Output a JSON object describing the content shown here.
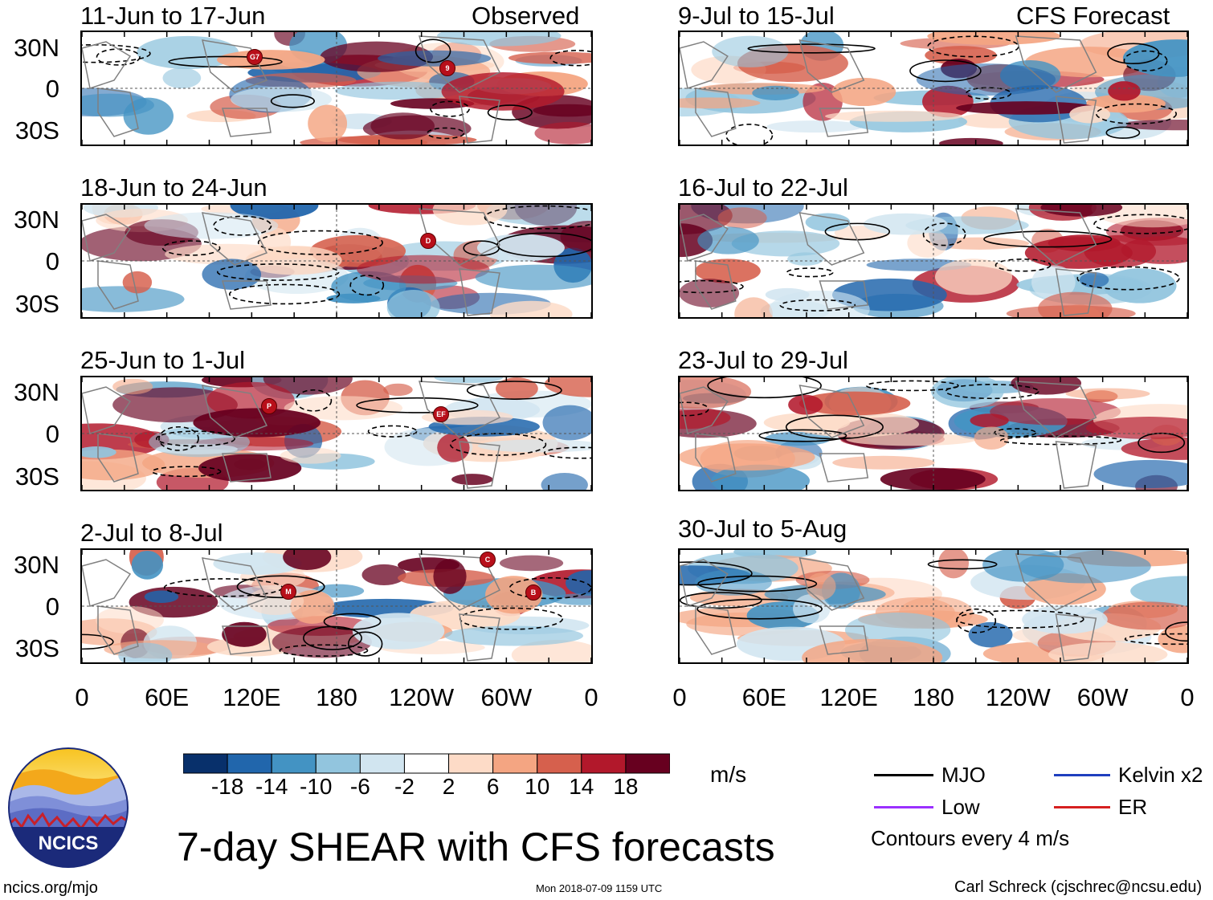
{
  "title": "7-day SHEAR with CFS forecasts",
  "logo": {
    "text": "NCICS",
    "url_text": "ncics.org/mjo",
    "icon": "ncics-mountain-logo"
  },
  "timestamp": "Mon 2018-07-09 1159 UTC",
  "author": "Carl Schreck (cjschrec@ncsu.edu)",
  "column_labels": {
    "observed": "Observed",
    "forecast": "CFS Forecast"
  },
  "y_ticks": [
    "30N",
    "0",
    "30S"
  ],
  "x_ticks": [
    "0",
    "60E",
    "120E",
    "180",
    "120W",
    "60W",
    "0"
  ],
  "colorbar": {
    "units": "m/s",
    "labels": [
      "-18",
      "-14",
      "-10",
      "-6",
      "-2",
      "2",
      "6",
      "10",
      "14",
      "18"
    ],
    "colors": [
      "#08306b",
      "#2166ac",
      "#4393c3",
      "#92c5de",
      "#d1e5f0",
      "#ffffff",
      "#fddbc7",
      "#f4a582",
      "#d6604d",
      "#b2182b",
      "#67001f"
    ]
  },
  "legend": {
    "items": [
      {
        "label": "MJO",
        "color": "#000000"
      },
      {
        "label": "Kelvin x2",
        "color": "#1f3fbf"
      },
      {
        "label": "Low",
        "color": "#9b30ff"
      },
      {
        "label": "ER",
        "color": "#d62020"
      }
    ],
    "note": "Contours every 4 m/s"
  },
  "chart_data": {
    "type": "heatmap",
    "variable": "vertical wind shear anomaly",
    "units": "m/s",
    "contour_interval_m_s": 4,
    "lat_range": [
      -40,
      40
    ],
    "lon_range": [
      0,
      360
    ],
    "panels": [
      {
        "label": "11-Jun to 17-Jun",
        "source": "Observed",
        "storms": [
          "G",
          "7",
          "9"
        ]
      },
      {
        "label": "18-Jun to 24-Jun",
        "source": "Observed",
        "storms": [
          "D"
        ]
      },
      {
        "label": "25-Jun to 1-Jul",
        "source": "Observed",
        "storms": [
          "P",
          "E",
          "F"
        ]
      },
      {
        "label": "2-Jul to 8-Jul",
        "source": "Observed",
        "storms": [
          "M",
          "C",
          "B"
        ]
      },
      {
        "label": "9-Jul to 15-Jul",
        "source": "CFS Forecast",
        "storms": []
      },
      {
        "label": "16-Jul to 22-Jul",
        "source": "CFS Forecast",
        "storms": []
      },
      {
        "label": "23-Jul to 29-Jul",
        "source": "CFS Forecast",
        "storms": []
      },
      {
        "label": "30-Jul to 5-Aug",
        "source": "CFS Forecast",
        "storms": []
      }
    ]
  }
}
